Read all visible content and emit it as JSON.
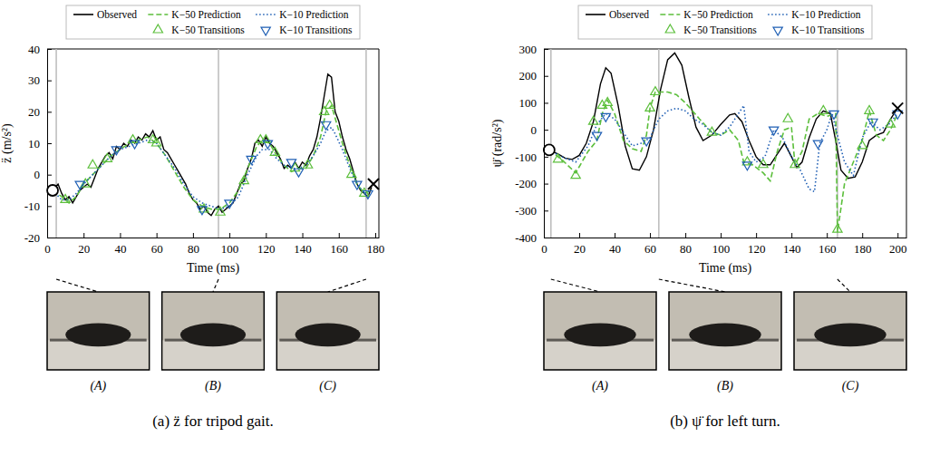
{
  "chart_data": [
    {
      "type": "line",
      "xlabel": "Time (ms)",
      "ylabel": "z̈ (m/s²)",
      "xlim": [
        0,
        182
      ],
      "ylim": [
        -20,
        40
      ],
      "xticks": [
        0,
        20,
        40,
        60,
        80,
        100,
        120,
        140,
        160,
        180
      ],
      "yticks": [
        -20,
        -10,
        0,
        10,
        20,
        30,
        40
      ],
      "grid": false,
      "legend": "top",
      "series": [
        {
          "name": "Observed",
          "type": "line",
          "color": "#000000",
          "line_style": "solid",
          "x": [
            3,
            6,
            8,
            10,
            12,
            14,
            16,
            18,
            20,
            22,
            24,
            26,
            28,
            30,
            32,
            34,
            36,
            38,
            40,
            42,
            44,
            46,
            48,
            50,
            52,
            54,
            56,
            58,
            60,
            62,
            64,
            66,
            68,
            70,
            72,
            74,
            76,
            78,
            80,
            82,
            84,
            86,
            88,
            90,
            92,
            94,
            96,
            98,
            100,
            102,
            104,
            106,
            108,
            110,
            112,
            114,
            116,
            118,
            120,
            122,
            124,
            126,
            128,
            130,
            132,
            134,
            136,
            138,
            140,
            142,
            144,
            146,
            148,
            150,
            152,
            154,
            156,
            158,
            160,
            162,
            164,
            166,
            168,
            170,
            172,
            174,
            176,
            178
          ],
          "values": [
            -5,
            -3,
            -6,
            -8,
            -7,
            -9,
            -7,
            -5,
            -4,
            -3,
            -4,
            -1,
            2,
            4,
            6,
            7,
            5,
            9,
            8,
            10,
            9,
            11,
            10,
            12,
            11,
            13,
            12,
            14,
            11,
            12,
            8,
            7,
            5,
            3,
            1,
            -1,
            -3,
            -6,
            -8,
            -9,
            -11,
            -10,
            -12,
            -13,
            -11,
            -10,
            -12,
            -11,
            -10,
            -9,
            -6,
            -3,
            -2,
            2,
            5,
            10,
            11,
            9,
            12,
            10,
            9,
            7,
            5,
            2,
            3,
            2,
            4,
            2,
            4,
            3,
            6,
            8,
            12,
            18,
            25,
            32,
            31,
            20,
            17,
            12,
            8,
            5,
            1,
            -3,
            -5,
            -6,
            -7,
            -4
          ]
        },
        {
          "name": "K−50 Prediction",
          "type": "line",
          "color": "#5cbf3c",
          "line_style": "dashed",
          "x": [
            3,
            8,
            12,
            16,
            20,
            25,
            30,
            35,
            40,
            45,
            50,
            55,
            60,
            65,
            70,
            75,
            80,
            85,
            90,
            95,
            100,
            105,
            110,
            115,
            118,
            122,
            126,
            130,
            134,
            138,
            142,
            146,
            150,
            153,
            156,
            158,
            162,
            166,
            170,
            174,
            178
          ],
          "values": [
            -5,
            -7,
            -9,
            -7,
            -3,
            0,
            3,
            6,
            8,
            10,
            11,
            12,
            10,
            6,
            1,
            -4,
            -8,
            -10,
            -11,
            -11,
            -9,
            -5,
            2,
            9,
            11,
            10,
            6,
            3,
            1,
            2,
            2,
            6,
            12,
            20,
            22,
            18,
            10,
            3,
            -3,
            -6,
            -5
          ]
        },
        {
          "name": "K−10 Prediction",
          "type": "line",
          "color": "#1f5fb4",
          "line_style": "dotted",
          "x": [
            3,
            8,
            12,
            16,
            20,
            25,
            30,
            35,
            40,
            45,
            50,
            55,
            60,
            65,
            70,
            75,
            80,
            85,
            90,
            95,
            100,
            105,
            110,
            115,
            118,
            122,
            126,
            130,
            134,
            138,
            142,
            146,
            150,
            153,
            156,
            158,
            162,
            166,
            170,
            174,
            178
          ],
          "values": [
            -5,
            -8,
            -8,
            -6,
            -3,
            0,
            3,
            6,
            8,
            9,
            10,
            11,
            10,
            6,
            2,
            -3,
            -7,
            -9,
            -10,
            -11,
            -10,
            -7,
            0,
            6,
            8,
            8,
            5,
            3,
            2,
            2,
            3,
            6,
            10,
            14,
            15,
            13,
            8,
            2,
            -3,
            -6,
            -5
          ]
        },
        {
          "name": "K−50 Transitions",
          "type": "scatter",
          "color": "#5cbf3c",
          "marker": "triangle-up",
          "x": [
            10,
            21,
            25,
            33,
            47,
            58,
            60,
            86,
            95,
            108,
            117,
            120,
            125,
            136,
            143,
            152,
            155,
            167,
            174
          ],
          "values": [
            -8,
            -3,
            3,
            5,
            11,
            11,
            10,
            -11,
            -12,
            -2,
            11,
            11,
            7,
            2,
            3,
            20,
            22,
            0,
            -6
          ]
        },
        {
          "name": "K−10 Transitions",
          "type": "scatter",
          "color": "#1f5fb4",
          "marker": "triangle-down",
          "x": [
            18,
            38,
            48,
            85,
            100,
            112,
            121,
            134,
            138,
            153,
            170,
            176
          ],
          "values": [
            -3,
            8,
            10,
            -11,
            -9,
            5,
            10,
            4,
            1,
            16,
            -3,
            -6
          ]
        }
      ],
      "start": {
        "x": 3,
        "y": -5
      },
      "end": {
        "x": 179,
        "y": -3
      },
      "snapshots": [
        {
          "x": 5,
          "label": "(A)"
        },
        {
          "x": 94,
          "label": "(B)"
        },
        {
          "x": 175,
          "label": "(C)"
        }
      ],
      "caption": "(a) z̈ for tripod gait."
    },
    {
      "type": "line",
      "xlabel": "Time (ms)",
      "ylabel": "ψ̈ (rad/s²)",
      "xlim": [
        0,
        205
      ],
      "ylim": [
        -400,
        300
      ],
      "xticks": [
        0,
        20,
        40,
        60,
        80,
        100,
        120,
        140,
        160,
        180,
        200
      ],
      "yticks": [
        -400,
        -300,
        -200,
        -100,
        0,
        100,
        200,
        300
      ],
      "grid": false,
      "legend": "top",
      "series": [
        {
          "name": "Observed",
          "type": "line",
          "color": "#000000",
          "line_style": "solid",
          "x": [
            3,
            8,
            12,
            16,
            20,
            24,
            28,
            32,
            35,
            38,
            42,
            46,
            50,
            54,
            58,
            62,
            66,
            70,
            74,
            78,
            82,
            86,
            90,
            95,
            100,
            105,
            108,
            112,
            116,
            120,
            124,
            128,
            132,
            136,
            140,
            143,
            146,
            150,
            154,
            158,
            162,
            165,
            168,
            172,
            176,
            180,
            184,
            188,
            192,
            196,
            200
          ],
          "values": [
            -75,
            -90,
            -105,
            -110,
            -95,
            -50,
            30,
            170,
            230,
            210,
            90,
            -60,
            -145,
            -150,
            -100,
            0,
            150,
            260,
            285,
            240,
            120,
            10,
            -40,
            -20,
            20,
            55,
            60,
            30,
            -40,
            -100,
            -130,
            -130,
            -90,
            -50,
            -100,
            -140,
            -120,
            -30,
            40,
            70,
            60,
            -40,
            -150,
            -180,
            -175,
            -120,
            -40,
            -20,
            -10,
            40,
            80
          ]
        },
        {
          "name": "K−50 Prediction",
          "type": "line",
          "color": "#5cbf3c",
          "line_style": "dashed",
          "x": [
            3,
            10,
            18,
            25,
            30,
            33,
            36,
            40,
            45,
            50,
            55,
            58,
            60,
            63,
            66,
            70,
            75,
            80,
            88,
            95,
            100,
            105,
            110,
            113,
            118,
            124,
            128,
            132,
            136,
            140,
            142,
            146,
            150,
            155,
            160,
            165,
            166,
            170,
            175,
            180,
            184,
            188,
            192,
            196,
            200
          ],
          "values": [
            -75,
            -110,
            -160,
            -80,
            -40,
            60,
            110,
            60,
            -40,
            -70,
            -80,
            -20,
            80,
            140,
            140,
            140,
            130,
            100,
            40,
            -10,
            -20,
            0,
            -40,
            -120,
            -130,
            -160,
            -190,
            -80,
            0,
            10,
            -130,
            -80,
            40,
            60,
            50,
            60,
            -380,
            -200,
            -120,
            -40,
            70,
            -20,
            -40,
            0,
            60
          ]
        },
        {
          "name": "K−10 Prediction",
          "type": "line",
          "color": "#1f5fb4",
          "line_style": "dotted",
          "x": [
            3,
            10,
            18,
            25,
            30,
            35,
            40,
            45,
            50,
            55,
            60,
            65,
            70,
            75,
            80,
            85,
            90,
            95,
            100,
            105,
            110,
            113,
            116,
            120,
            125,
            130,
            135,
            140,
            145,
            150,
            153,
            156,
            160,
            163,
            166,
            170,
            175,
            180,
            185,
            190,
            195,
            200
          ],
          "values": [
            -75,
            -100,
            -120,
            -60,
            20,
            60,
            40,
            -10,
            -60,
            -50,
            -30,
            40,
            70,
            80,
            70,
            40,
            20,
            -10,
            -20,
            10,
            60,
            90,
            -80,
            -120,
            -100,
            0,
            -30,
            -100,
            -150,
            -220,
            -230,
            -50,
            0,
            60,
            -20,
            -120,
            -170,
            -30,
            30,
            0,
            20,
            60
          ]
        },
        {
          "name": "K−50 Transitions",
          "type": "scatter",
          "color": "#5cbf3c",
          "marker": "triangle-up",
          "x": [
            8,
            18,
            28,
            33,
            36,
            60,
            63,
            95,
            115,
            124,
            138,
            142,
            158,
            166,
            180,
            184,
            196
          ],
          "values": [
            -110,
            -170,
            30,
            90,
            100,
            80,
            140,
            -10,
            -120,
            -130,
            40,
            -130,
            70,
            -370,
            -60,
            70,
            20
          ]
        },
        {
          "name": "K−10 Transitions",
          "type": "scatter",
          "color": "#1f5fb4",
          "marker": "triangle-down",
          "x": [
            30,
            35,
            58,
            115,
            130,
            155,
            164,
            186,
            200
          ],
          "values": [
            -20,
            50,
            -40,
            -130,
            0,
            -50,
            60,
            30,
            60
          ]
        }
      ],
      "start": {
        "x": 3,
        "y": -75
      },
      "end": {
        "x": 200,
        "y": 80
      },
      "snapshots": [
        {
          "x": 4,
          "label": "(A)"
        },
        {
          "x": 65,
          "label": "(B)"
        },
        {
          "x": 166,
          "label": "(C)"
        }
      ],
      "caption": "(b) ψ̈ for left turn."
    }
  ]
}
